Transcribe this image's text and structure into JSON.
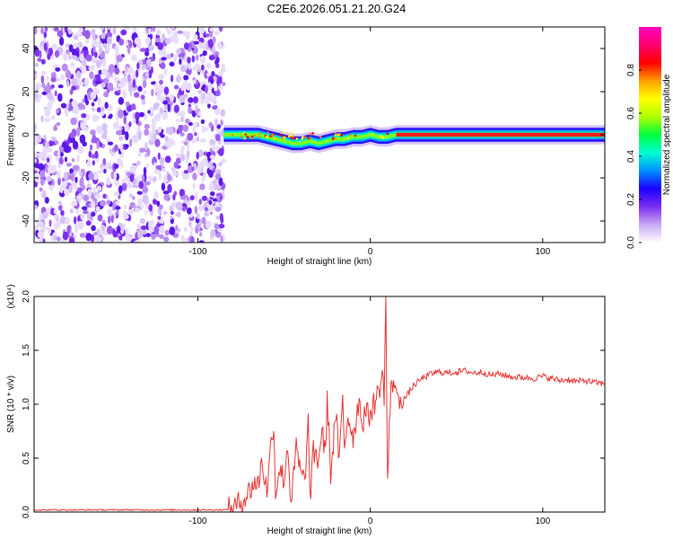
{
  "figure": {
    "title": "C2E6.2026.051.21.20.G24"
  },
  "chart_data": [
    {
      "type": "heatmap",
      "title": "C2E6.2026.051.21.20.G24",
      "xlabel": "Height of straight line (km)",
      "ylabel": "Frequency (Hz)",
      "xlim": [
        -195,
        136
      ],
      "ylim": [
        -50,
        50
      ],
      "xticks": [
        -100,
        0,
        100
      ],
      "xtick_labels": [
        "-100",
        "0",
        "100"
      ],
      "yticks": [
        -40,
        -20,
        0,
        20,
        40
      ],
      "ytick_labels": [
        "-40",
        "-20",
        "0",
        "20",
        "40"
      ],
      "noise_region_x": [
        -195,
        -85
      ],
      "signal_ridge": {
        "x": [
          -85,
          -75,
          -65,
          -60,
          -55,
          -50,
          -45,
          -40,
          -35,
          -30,
          -25,
          -20,
          -15,
          -10,
          -5,
          0,
          5,
          10,
          15,
          20,
          40,
          60,
          80,
          100,
          120,
          136
        ],
        "freq": [
          0,
          0,
          0,
          -1,
          -2,
          -3,
          -4,
          -4,
          -3,
          -4,
          -3,
          -2,
          -2,
          -1,
          -1,
          0,
          -1,
          -1,
          0,
          0,
          0,
          0,
          0,
          0,
          0,
          0
        ]
      },
      "colorbar": {
        "label": "Normalized spectral amplitude",
        "range": [
          0,
          1
        ],
        "ticks": [
          0.0,
          0.2,
          0.4,
          0.6,
          0.8
        ],
        "tick_labels": [
          "0.0",
          "0.2",
          "0.4",
          "0.6",
          "0.8"
        ],
        "colors": [
          "#ffffff",
          "#c9a8f5",
          "#7a2ff0",
          "#1a00ff",
          "#0090ff",
          "#00ffd0",
          "#00ff40",
          "#b0ff00",
          "#ffff00",
          "#ffa000",
          "#ff0000",
          "#ff0070",
          "#ff00c0"
        ]
      }
    },
    {
      "type": "line",
      "xlabel": "Height of straight line (km)",
      "ylabel": "SNR (10 * v/v)",
      "y_scale_label": "(x10⁴)",
      "xlim": [
        -195,
        136
      ],
      "ylim": [
        0,
        2.0
      ],
      "xticks": [
        -100,
        0,
        100
      ],
      "xtick_labels": [
        "-100",
        "0",
        "100"
      ],
      "yticks": [
        0.0,
        0.5,
        1.0,
        1.5,
        2.0
      ],
      "ytick_labels": [
        "0.0",
        "0.5",
        "1.0",
        "1.5",
        "2.0"
      ],
      "color": "#e63333",
      "series": [
        {
          "name": "SNR",
          "x": [
            -195,
            -150,
            -120,
            -100,
            -85,
            -80,
            -78,
            -75,
            -72,
            -70,
            -67,
            -65,
            -63,
            -60,
            -58,
            -56,
            -55,
            -53,
            -50,
            -48,
            -46,
            -45,
            -43,
            -40,
            -38,
            -36,
            -35,
            -33,
            -30,
            -28,
            -26,
            -25,
            -23,
            -20,
            -18,
            -16,
            -15,
            -13,
            -10,
            -8,
            -6,
            -5,
            -3,
            -1,
            0,
            2,
            4,
            6,
            7,
            8,
            9,
            10,
            11,
            12,
            14,
            16,
            18,
            20,
            25,
            30,
            35,
            40,
            45,
            50,
            55,
            60,
            65,
            70,
            75,
            80,
            85,
            90,
            95,
            100,
            105,
            110,
            115,
            120,
            125,
            130,
            136
          ],
          "y": [
            0.02,
            0.02,
            0.02,
            0.02,
            0.02,
            0.03,
            0.05,
            0.1,
            0.15,
            0.2,
            0.28,
            0.25,
            0.48,
            0.2,
            0.55,
            0.86,
            0.15,
            0.42,
            0.3,
            0.63,
            0.1,
            0.22,
            0.6,
            0.32,
            0.3,
            0.82,
            0.12,
            0.55,
            0.48,
            0.78,
            0.5,
            1.1,
            0.35,
            0.92,
            0.45,
            1.05,
            0.6,
            0.9,
            0.7,
            0.88,
            1.1,
            0.78,
            0.95,
            0.88,
            0.92,
            1.0,
            1.08,
            1.2,
            1.25,
            1.1,
            2.0,
            0.24,
            0.8,
            1.1,
            1.25,
            1.0,
            1.08,
            1.05,
            1.17,
            1.24,
            1.28,
            1.3,
            1.29,
            1.3,
            1.31,
            1.29,
            1.3,
            1.27,
            1.28,
            1.26,
            1.25,
            1.25,
            1.24,
            1.26,
            1.24,
            1.22,
            1.23,
            1.21,
            1.22,
            1.2,
            1.19
          ]
        }
      ]
    }
  ]
}
